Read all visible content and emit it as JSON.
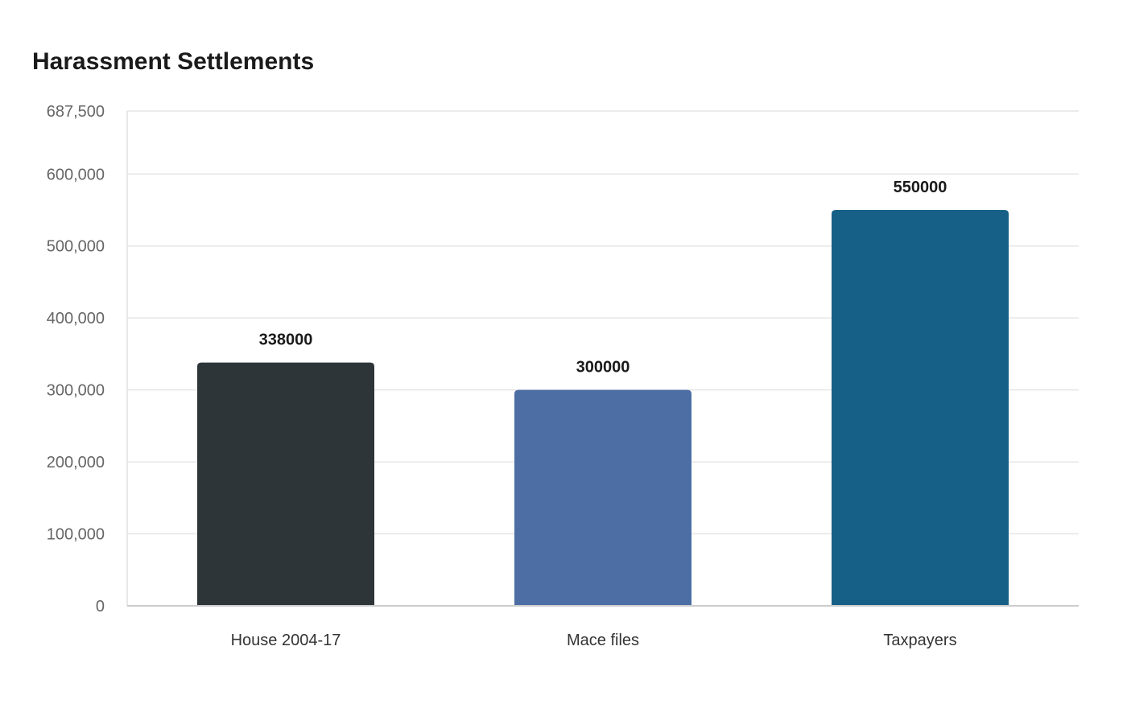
{
  "chart_data": {
    "type": "bar",
    "title": "Harassment Settlements",
    "categories": [
      "House 2004-17",
      "Mace files",
      "Taxpayers"
    ],
    "values": [
      338000,
      300000,
      550000
    ],
    "data_labels": [
      "338000",
      "300000",
      "550000"
    ],
    "colors": [
      "#2d3538",
      "#4c6ea4",
      "#166088"
    ],
    "ylim": [
      0,
      687500
    ],
    "yticks": [
      0,
      100000,
      200000,
      300000,
      400000,
      500000,
      600000,
      687500
    ],
    "ytick_labels": [
      "0",
      "100,000",
      "200,000",
      "300,000",
      "400,000",
      "500,000",
      "600,000",
      "687,500"
    ],
    "xlabel": "",
    "ylabel": "",
    "grid": true,
    "legend": "none"
  }
}
